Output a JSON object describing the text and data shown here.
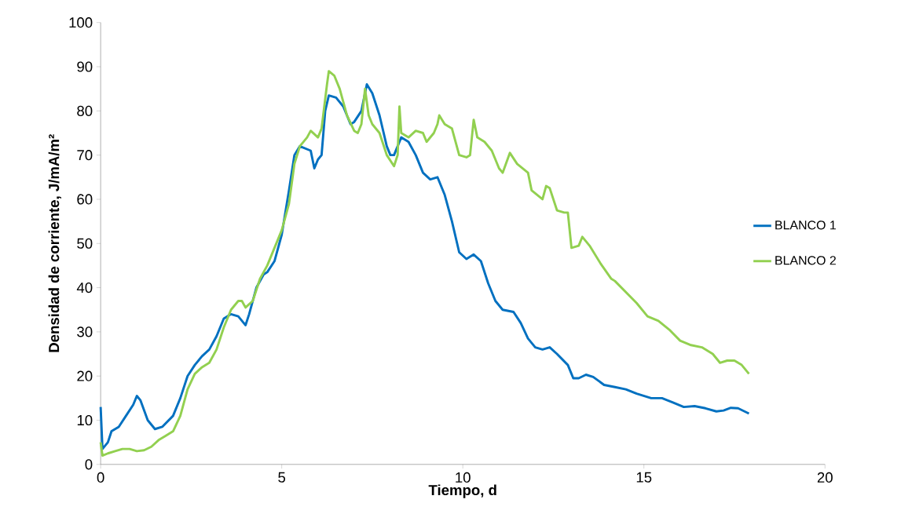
{
  "chart_data": {
    "type": "line",
    "xlabel": "Tiempo, d",
    "ylabel": "Densidad de corriente, J/mA/m²",
    "xlim": [
      0,
      20
    ],
    "xticks": [
      0,
      5,
      10,
      15,
      20
    ],
    "ylim": [
      0,
      100
    ],
    "yticks": [
      0,
      10,
      20,
      30,
      40,
      50,
      60,
      70,
      80,
      90,
      100
    ],
    "grid": false,
    "legend": "right",
    "marker": "none",
    "line_style": "solid",
    "series": [
      {
        "name": "BLANCO 1",
        "color": "#0070c0",
        "x": [
          0,
          0.05,
          0.2,
          0.3,
          0.5,
          0.7,
          0.9,
          1.0,
          1.1,
          1.3,
          1.5,
          1.7,
          2.0,
          2.2,
          2.4,
          2.6,
          2.8,
          3.0,
          3.2,
          3.4,
          3.6,
          3.8,
          4.0,
          4.1,
          4.3,
          4.5,
          4.6,
          4.8,
          5.0,
          5.2,
          5.35,
          5.5,
          5.8,
          5.9,
          6.0,
          6.1,
          6.2,
          6.3,
          6.5,
          6.7,
          6.9,
          7.0,
          7.2,
          7.35,
          7.5,
          7.7,
          7.9,
          8.0,
          8.1,
          8.2,
          8.3,
          8.5,
          8.7,
          8.9,
          9.1,
          9.3,
          9.5,
          9.7,
          9.9,
          10.1,
          10.3,
          10.5,
          10.7,
          10.9,
          11.1,
          11.4,
          11.6,
          11.8,
          12.0,
          12.2,
          12.4,
          12.6,
          12.9,
          13.05,
          13.2,
          13.4,
          13.6,
          13.9,
          14.2,
          14.5,
          14.8,
          15.2,
          15.5,
          15.8,
          16.1,
          16.4,
          16.7,
          17.0,
          17.2,
          17.4,
          17.6,
          17.9
        ],
        "values": [
          13,
          3.5,
          5,
          7.5,
          8.5,
          11,
          13.5,
          15.5,
          14.5,
          10,
          8,
          8.5,
          11,
          15,
          20,
          22.5,
          24.5,
          26,
          29,
          33,
          34,
          33.5,
          31.5,
          34,
          40,
          43,
          43.5,
          46,
          52,
          62,
          70,
          72,
          71,
          67,
          69,
          70,
          80,
          83.5,
          83,
          81,
          77,
          77.5,
          80,
          86,
          84,
          79,
          72,
          70,
          70,
          72,
          74,
          73,
          70,
          66,
          64.5,
          65,
          61,
          55,
          48,
          46.5,
          47.5,
          46,
          41,
          37,
          35,
          34.5,
          32,
          28.5,
          26.5,
          26,
          26.5,
          25,
          22.5,
          19.5,
          19.5,
          20.3,
          19.8,
          18,
          17.5,
          17,
          16,
          15,
          15,
          14,
          13,
          13.2,
          12.7,
          12,
          12.2,
          12.8,
          12.7,
          11.5
        ]
      },
      {
        "name": "BLANCO 2",
        "color": "#92d050",
        "x": [
          0,
          0.05,
          0.2,
          0.4,
          0.6,
          0.8,
          1.0,
          1.2,
          1.4,
          1.6,
          1.8,
          2.0,
          2.2,
          2.4,
          2.6,
          2.8,
          3.0,
          3.2,
          3.4,
          3.6,
          3.8,
          3.9,
          4.0,
          4.2,
          4.4,
          4.6,
          4.8,
          5.0,
          5.2,
          5.35,
          5.5,
          5.7,
          5.8,
          6.0,
          6.1,
          6.25,
          6.3,
          6.45,
          6.6,
          6.8,
          7.0,
          7.1,
          7.2,
          7.3,
          7.4,
          7.5,
          7.7,
          7.9,
          8.1,
          8.2,
          8.25,
          8.3,
          8.5,
          8.7,
          8.9,
          9.0,
          9.2,
          9.3,
          9.35,
          9.5,
          9.7,
          9.9,
          10.1,
          10.2,
          10.3,
          10.4,
          10.6,
          10.8,
          11.0,
          11.1,
          11.3,
          11.5,
          11.8,
          11.9,
          12.2,
          12.3,
          12.4,
          12.6,
          12.8,
          12.9,
          13.0,
          13.2,
          13.3,
          13.5,
          13.8,
          14.1,
          14.2,
          14.5,
          14.8,
          15.1,
          15.4,
          15.7,
          16.0,
          16.3,
          16.6,
          16.9,
          17.1,
          17.3,
          17.5,
          17.7,
          17.9
        ],
        "values": [
          5,
          2,
          2.5,
          3,
          3.5,
          3.5,
          3,
          3.2,
          4,
          5.5,
          6.5,
          7.5,
          11,
          17,
          20.5,
          22,
          23,
          26,
          31,
          35,
          37,
          37,
          35.5,
          37,
          42,
          45,
          49,
          53,
          59,
          68,
          72,
          74,
          75.5,
          74,
          76,
          86,
          89,
          88,
          85,
          79,
          75.5,
          75,
          77,
          85,
          79,
          77,
          75,
          70,
          67.5,
          70,
          81,
          75,
          74,
          75.5,
          75,
          73,
          75,
          77,
          79,
          77,
          76,
          70,
          69.5,
          70,
          78,
          74,
          73,
          71,
          67,
          66,
          70.5,
          68,
          66,
          62,
          60,
          63,
          62.5,
          57.5,
          57,
          57,
          49,
          49.5,
          51.5,
          49.5,
          45.5,
          42,
          41.5,
          39,
          36.5,
          33.5,
          32.5,
          30.5,
          28,
          27,
          26.5,
          25,
          23,
          23.5,
          23.5,
          22.5,
          20.5
        ]
      }
    ]
  }
}
